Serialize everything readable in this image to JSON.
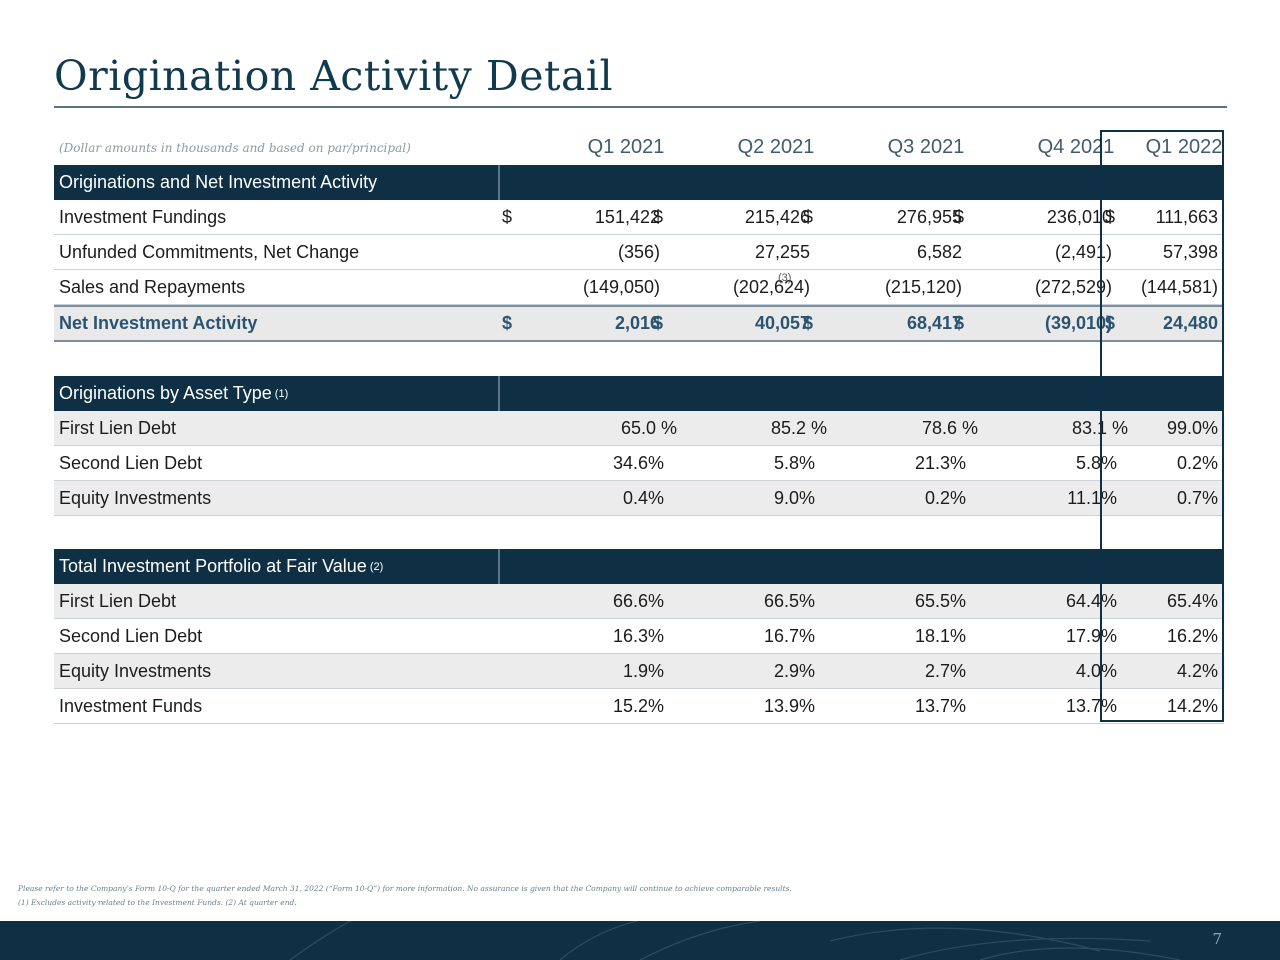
{
  "title": "Origination Activity Detail",
  "header": {
    "note": "(Dollar amounts in thousands and based on par/principal)",
    "quarters": [
      "Q1 2021",
      "Q2 2021",
      "Q3 2021",
      "Q4 2021",
      "Q1 2022"
    ]
  },
  "section1": {
    "title": "Originations and Net Investment Activity",
    "rows": [
      {
        "label": "Investment Fundings",
        "values": [
          "151,422",
          "215,426",
          "276,955",
          "236,010",
          "111,663"
        ]
      },
      {
        "label": "Unfunded Commitments, Net Change",
        "values": [
          "(356)",
          "27,255",
          "6,582",
          "(2,491)",
          "57,398"
        ]
      },
      {
        "label": "Sales and Repayments",
        "values": [
          "(149,050)",
          "(202,624)",
          "(215,120)",
          "(272,529)",
          "(144,581)"
        ]
      }
    ],
    "total": {
      "label": "Net Investment Activity",
      "values": [
        "2,016",
        "40,057",
        "68,417",
        "(39,010)",
        "24,480"
      ]
    },
    "currency_symbol": "$",
    "note_marker": "(3)"
  },
  "section2": {
    "title": "Originations by Asset Type",
    "superscript": "(1)",
    "rows": [
      {
        "label": "First Lien Debt",
        "values": [
          "65.0 %",
          "85.2 %",
          "78.6 %",
          "83.1 %",
          "99.0%"
        ]
      },
      {
        "label": "Second Lien Debt",
        "values": [
          "34.6%",
          "5.8%",
          "21.3%",
          "5.8%",
          "0.2%"
        ]
      },
      {
        "label": "Equity Investments",
        "values": [
          "0.4%",
          "9.0%",
          "0.2%",
          "11.1%",
          "0.7%"
        ]
      }
    ]
  },
  "section3": {
    "title": "Total Investment Portfolio at Fair Value",
    "superscript": "(2)",
    "rows": [
      {
        "label": "First Lien Debt",
        "values": [
          "66.6%",
          "66.5%",
          "65.5%",
          "64.4%",
          "65.4%"
        ]
      },
      {
        "label": "Second Lien Debt",
        "values": [
          "16.3%",
          "16.7%",
          "18.1%",
          "17.9%",
          "16.2%"
        ]
      },
      {
        "label": "Equity Investments",
        "values": [
          "1.9%",
          "2.9%",
          "2.7%",
          "4.0%",
          "4.2%"
        ]
      },
      {
        "label": "Investment Funds",
        "values": [
          "15.2%",
          "13.9%",
          "13.7%",
          "13.7%",
          "14.2%"
        ]
      }
    ]
  },
  "footnotes": [
    "Please refer to the Company’s Form 10-Q for the quarter ended March 31, 2022 (“Form 10-Q”) for more information. No assurance is given that the Company will continue to achieve comparable results.",
    "(1) Excludes activity related to the Investment Funds. (2) At quarter end."
  ],
  "page_number": "7",
  "colors": {
    "navy": "#0e2f44",
    "title": "#123a4e",
    "total_text": "#2b5470"
  }
}
